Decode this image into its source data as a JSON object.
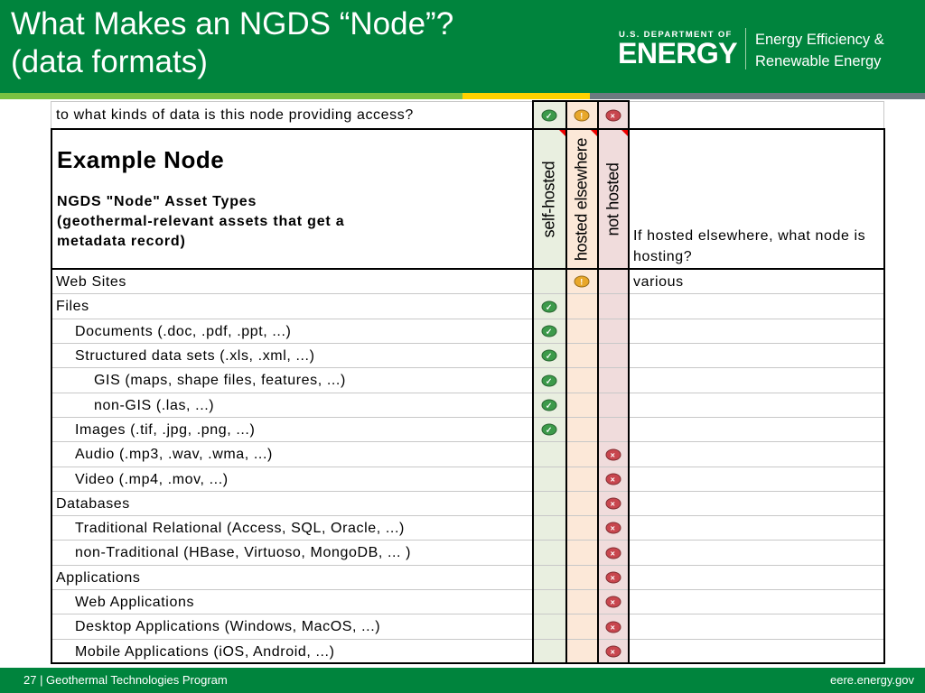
{
  "header": {
    "title": "What Makes an NGDS “Node”?\n(data formats)",
    "logo_small": "U.S. DEPARTMENT OF",
    "logo_big": "ENERGY",
    "office": "Energy Efficiency &\nRenewable Energy"
  },
  "colors": {
    "brand_green": "#00843d",
    "stripe_light_green": "#7ac143",
    "stripe_yellow": "#ffd100",
    "stripe_gray": "#6d7a80"
  },
  "table": {
    "question": "to what kinds of data is this node providing access?",
    "legend_icons": [
      "check-icon",
      "warning-icon",
      "x-icon"
    ],
    "example_title": "Example Node",
    "asset_types_label": "NGDS \"Node\" Asset Types\n(geothermal-relevant assets that get a\nmetadata record)",
    "col_headers": [
      "self-hosted",
      "hosted elsewhere",
      "not hosted"
    ],
    "notes_header": "If hosted elsewhere, what node is hosting?",
    "rows": [
      {
        "label": "Web Sites",
        "level": 0,
        "status": "elsewhere",
        "note": "various"
      },
      {
        "label": "Files",
        "level": 0,
        "status": "self",
        "note": ""
      },
      {
        "label": "Documents (.doc, .pdf, .ppt, ...)",
        "level": 1,
        "status": "self",
        "note": ""
      },
      {
        "label": "Structured data sets (.xls, .xml, ...)",
        "level": 1,
        "status": "self",
        "note": ""
      },
      {
        "label": "GIS (maps, shape files, features, ...)",
        "level": 2,
        "status": "self",
        "note": ""
      },
      {
        "label": "non-GIS (.las, ...)",
        "level": 2,
        "status": "self",
        "note": ""
      },
      {
        "label": "Images (.tif, .jpg, .png, ...)",
        "level": 1,
        "status": "self",
        "note": ""
      },
      {
        "label": "Audio (.mp3, .wav, .wma, ...)",
        "level": 1,
        "status": "not",
        "note": ""
      },
      {
        "label": "Video (.mp4, .mov, ...)",
        "level": 1,
        "status": "not",
        "note": ""
      },
      {
        "label": "Databases",
        "level": 0,
        "status": "not",
        "note": ""
      },
      {
        "label": "Traditional Relational (Access, SQL, Oracle, ...)",
        "level": 1,
        "status": "not",
        "note": ""
      },
      {
        "label": "non-Traditional (HBase, Virtuoso, MongoDB, ... )",
        "level": 1,
        "status": "not",
        "note": ""
      },
      {
        "label": "Applications",
        "level": 0,
        "status": "not",
        "note": ""
      },
      {
        "label": "Web Applications",
        "level": 1,
        "status": "not",
        "note": ""
      },
      {
        "label": "Desktop Applications (Windows, MacOS, ...)",
        "level": 1,
        "status": "not",
        "note": ""
      },
      {
        "label": "Mobile Applications (iOS, Android, ...)",
        "level": 1,
        "status": "not",
        "note": ""
      }
    ]
  },
  "footer": {
    "left": "27 | Geothermal Technologies Program",
    "right": "eere.energy.gov"
  }
}
